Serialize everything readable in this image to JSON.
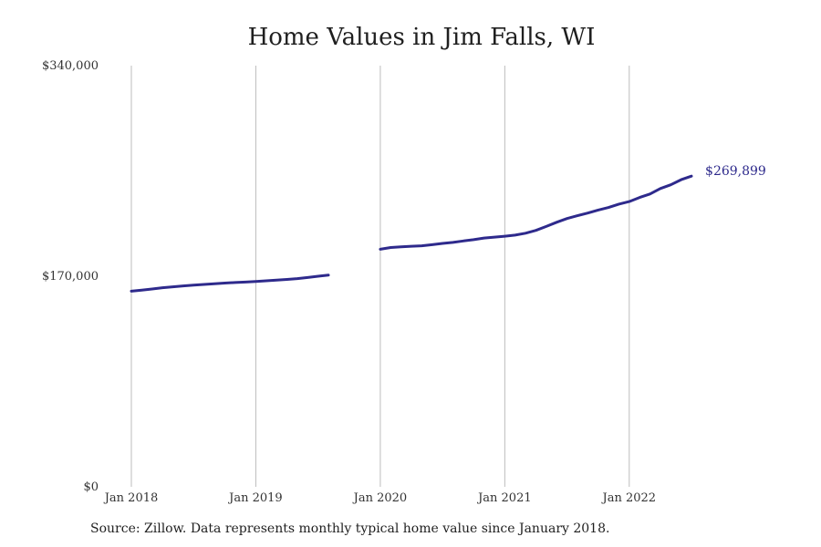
{
  "chart_data": {
    "type": "line",
    "title": "Home Values in Jim Falls, WI",
    "xlabel": "",
    "ylabel": "",
    "xlim": [
      "2018-01",
      "2023-03"
    ],
    "ylim": [
      0,
      340000
    ],
    "y_ticks": [
      {
        "value": 0,
        "label": "$0"
      },
      {
        "value": 170000,
        "label": "$170,000"
      },
      {
        "value": 340000,
        "label": "$340,000"
      }
    ],
    "x_ticks": [
      {
        "value": "2018-01",
        "label": "Jan 2018"
      },
      {
        "value": "2019-01",
        "label": "Jan 2019"
      },
      {
        "value": "2020-01",
        "label": "Jan 2020"
      },
      {
        "value": "2021-01",
        "label": "Jan 2021"
      },
      {
        "value": "2022-01",
        "label": "Jan 2022"
      }
    ],
    "grid": "vertical",
    "series": [
      {
        "color": "#2e2a8c",
        "points": [
          {
            "x": "2018-01",
            "y": 157900
          },
          {
            "x": "2018-02",
            "y": 158800
          },
          {
            "x": "2018-03",
            "y": 159700
          },
          {
            "x": "2018-04",
            "y": 160700
          },
          {
            "x": "2018-05",
            "y": 161500
          },
          {
            "x": "2018-06",
            "y": 162200
          },
          {
            "x": "2018-07",
            "y": 162800
          },
          {
            "x": "2018-08",
            "y": 163400
          },
          {
            "x": "2018-09",
            "y": 164000
          },
          {
            "x": "2018-10",
            "y": 164500
          },
          {
            "x": "2018-11",
            "y": 164900
          },
          {
            "x": "2018-12",
            "y": 165300
          },
          {
            "x": "2019-01",
            "y": 165700
          },
          {
            "x": "2019-02",
            "y": 166300
          },
          {
            "x": "2019-03",
            "y": 166900
          },
          {
            "x": "2019-04",
            "y": 167400
          },
          {
            "x": "2019-05",
            "y": 168100
          },
          {
            "x": "2019-06",
            "y": 169000
          },
          {
            "x": "2019-07",
            "y": 170000
          },
          {
            "x": "2019-08",
            "y": 170900
          },
          {
            "x": "2019-09",
            "y": null
          },
          {
            "x": "2019-10",
            "y": null
          },
          {
            "x": "2019-11",
            "y": null
          },
          {
            "x": "2019-12",
            "y": null
          },
          {
            "x": "2020-01",
            "y": 191800
          },
          {
            "x": "2020-02",
            "y": 193200
          },
          {
            "x": "2020-03",
            "y": 193800
          },
          {
            "x": "2020-04",
            "y": 194200
          },
          {
            "x": "2020-05",
            "y": 194600
          },
          {
            "x": "2020-06",
            "y": 195500
          },
          {
            "x": "2020-07",
            "y": 196500
          },
          {
            "x": "2020-08",
            "y": 197300
          },
          {
            "x": "2020-09",
            "y": 198500
          },
          {
            "x": "2020-10",
            "y": 199500
          },
          {
            "x": "2020-11",
            "y": 200800
          },
          {
            "x": "2020-12",
            "y": 201600
          },
          {
            "x": "2021-01",
            "y": 202300
          },
          {
            "x": "2021-02",
            "y": 203200
          },
          {
            "x": "2021-03",
            "y": 204700
          },
          {
            "x": "2021-04",
            "y": 207000
          },
          {
            "x": "2021-05",
            "y": 210200
          },
          {
            "x": "2021-06",
            "y": 213600
          },
          {
            "x": "2021-07",
            "y": 216600
          },
          {
            "x": "2021-08",
            "y": 218900
          },
          {
            "x": "2021-09",
            "y": 221000
          },
          {
            "x": "2021-10",
            "y": 223400
          },
          {
            "x": "2021-11",
            "y": 225500
          },
          {
            "x": "2021-12",
            "y": 228200
          },
          {
            "x": "2022-01",
            "y": 230300
          },
          {
            "x": "2022-02",
            "y": 233600
          },
          {
            "x": "2022-03",
            "y": 236400
          },
          {
            "x": "2022-04",
            "y": 240800
          },
          {
            "x": "2022-05",
            "y": 243800
          },
          {
            "x": "2022-06",
            "y": 247900
          },
          {
            "x": "2022-07",
            "y": 250800
          }
        ],
        "end_label": "$269,899"
      }
    ]
  },
  "source_note": "Source: Zillow. Data represents monthly typical home value since January 2018."
}
